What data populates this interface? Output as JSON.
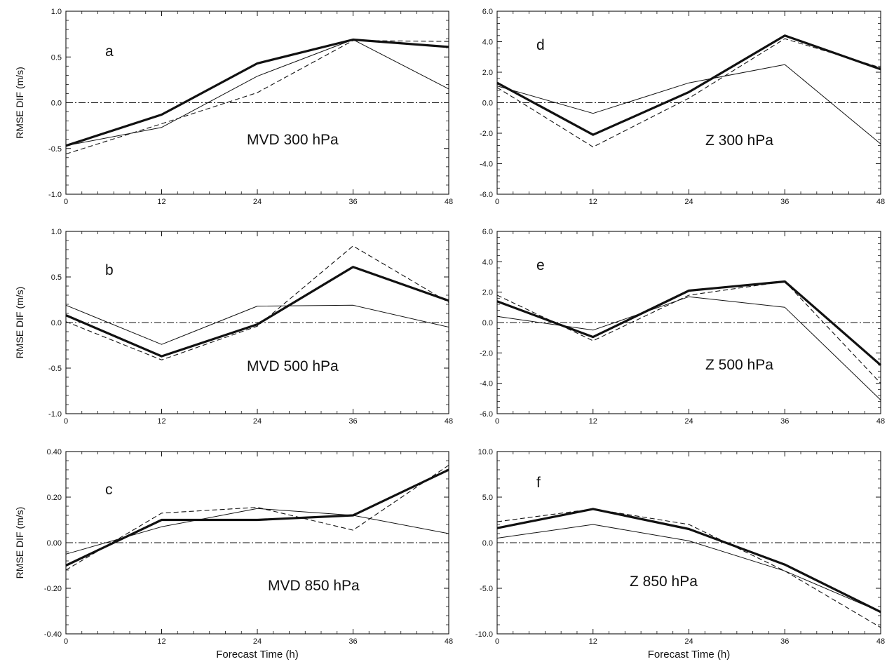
{
  "chart_data": [
    {
      "type": "line",
      "panel_label": "a",
      "annotation": "MVD 300 hPa",
      "ylabel": "RMSE DIF (m/s)",
      "xlabel": "",
      "ylim": [
        -1.0,
        1.0
      ],
      "yticks": [
        -1.0,
        -0.5,
        0.0,
        0.5,
        1.0
      ],
      "ytick_labels": [
        "-1.0",
        "-0.5",
        "0.0",
        "0.5",
        "1.0"
      ],
      "xlim": [
        0,
        48
      ],
      "xticks": [
        0,
        12,
        24,
        36,
        48
      ],
      "xtick_labels": [
        "0",
        "12",
        "24",
        "36",
        "48"
      ],
      "x": [
        0,
        12,
        24,
        36,
        48
      ],
      "grid": false,
      "legend": "none",
      "series": [
        {
          "style": "thick-solid",
          "values": [
            -0.47,
            -0.13,
            0.43,
            0.69,
            0.61
          ]
        },
        {
          "style": "thin-solid",
          "values": [
            -0.47,
            -0.27,
            0.29,
            0.69,
            0.15
          ]
        },
        {
          "style": "dashed",
          "values": [
            -0.56,
            -0.23,
            0.11,
            0.68,
            0.67
          ]
        },
        {
          "style": "dash-dot",
          "values": [
            0,
            0,
            0,
            0,
            0
          ]
        }
      ]
    },
    {
      "type": "line",
      "panel_label": "b",
      "annotation": "MVD 500 hPa",
      "ylabel": "RMSE DIF (m/s)",
      "xlabel": "",
      "ylim": [
        -1.0,
        1.0
      ],
      "yticks": [
        -1.0,
        -0.5,
        0.0,
        0.5,
        1.0
      ],
      "ytick_labels": [
        "-1.0",
        "-0.5",
        "0.0",
        "0.5",
        "1.0"
      ],
      "xlim": [
        0,
        48
      ],
      "xticks": [
        0,
        12,
        24,
        36,
        48
      ],
      "xtick_labels": [
        "0",
        "12",
        "24",
        "36",
        "48"
      ],
      "x": [
        0,
        12,
        24,
        36,
        48
      ],
      "grid": false,
      "legend": "none",
      "series": [
        {
          "style": "thick-solid",
          "values": [
            0.08,
            -0.37,
            -0.02,
            0.61,
            0.24
          ]
        },
        {
          "style": "thin-solid",
          "values": [
            0.19,
            -0.24,
            0.18,
            0.19,
            -0.05
          ]
        },
        {
          "style": "dashed",
          "values": [
            0.01,
            -0.41,
            -0.04,
            0.84,
            0.22
          ]
        },
        {
          "style": "dash-dot",
          "values": [
            0,
            0,
            0,
            0,
            0
          ]
        }
      ]
    },
    {
      "type": "line",
      "panel_label": "c",
      "annotation": "MVD 850 hPa",
      "ylabel": "RMSE DIF (m/s)",
      "xlabel": "Forecast Time (h)",
      "ylim": [
        -0.4,
        0.4
      ],
      "yticks": [
        -0.4,
        -0.2,
        0.0,
        0.2,
        0.4
      ],
      "ytick_labels": [
        "-0.40",
        "-0.20",
        "0.00",
        "0.20",
        "0.40"
      ],
      "xlim": [
        0,
        48
      ],
      "xticks": [
        0,
        12,
        24,
        36,
        48
      ],
      "xtick_labels": [
        "0",
        "12",
        "24",
        "36",
        "48"
      ],
      "x": [
        0,
        12,
        24,
        36,
        48
      ],
      "grid": false,
      "legend": "none",
      "series": [
        {
          "style": "thick-solid",
          "values": [
            -0.1,
            0.1,
            0.1,
            0.12,
            0.32
          ]
        },
        {
          "style": "thin-solid",
          "values": [
            -0.05,
            0.07,
            0.15,
            0.12,
            0.04
          ]
        },
        {
          "style": "dashed",
          "values": [
            -0.12,
            0.13,
            0.155,
            0.055,
            0.34
          ]
        },
        {
          "style": "dash-dot",
          "values": [
            0,
            0,
            0,
            0,
            0
          ]
        }
      ]
    },
    {
      "type": "line",
      "panel_label": "d",
      "annotation": "Z 300 hPa",
      "ylabel": "",
      "xlabel": "",
      "ylim": [
        -6.0,
        6.0
      ],
      "yticks": [
        -6,
        -4,
        -2,
        0,
        2,
        4,
        6
      ],
      "ytick_labels": [
        "-6.0",
        "-4.0",
        "-2.0",
        "0.0",
        "2.0",
        "4.0",
        "6.0"
      ],
      "xlim": [
        0,
        48
      ],
      "xticks": [
        0,
        12,
        24,
        36,
        48
      ],
      "xtick_labels": [
        "0",
        "12",
        "24",
        "36",
        "48"
      ],
      "x": [
        0,
        12,
        24,
        36,
        48
      ],
      "grid": false,
      "legend": "none",
      "series": [
        {
          "style": "thick-solid",
          "values": [
            1.3,
            -2.1,
            0.7,
            4.4,
            2.2
          ]
        },
        {
          "style": "thin-solid",
          "values": [
            1.1,
            -0.7,
            1.3,
            2.5,
            -2.7
          ]
        },
        {
          "style": "dashed",
          "values": [
            1.0,
            -2.9,
            0.3,
            4.2,
            2.3
          ]
        },
        {
          "style": "dash-dot",
          "values": [
            0,
            0,
            0,
            0,
            0
          ]
        }
      ]
    },
    {
      "type": "line",
      "panel_label": "e",
      "annotation": "Z 500 hPa",
      "ylabel": "",
      "xlabel": "",
      "ylim": [
        -6.0,
        6.0
      ],
      "yticks": [
        -6,
        -4,
        -2,
        0,
        2,
        4,
        6
      ],
      "ytick_labels": [
        "-6.0",
        "-4.0",
        "-2.0",
        "0.0",
        "2.0",
        "4.0",
        "6.0"
      ],
      "xlim": [
        0,
        48
      ],
      "xticks": [
        0,
        12,
        24,
        36,
        48
      ],
      "xtick_labels": [
        "0",
        "12",
        "24",
        "36",
        "48"
      ],
      "x": [
        0,
        12,
        24,
        36,
        48
      ],
      "grid": false,
      "legend": "none",
      "series": [
        {
          "style": "thick-solid",
          "values": [
            1.4,
            -0.95,
            2.1,
            2.7,
            -2.8
          ]
        },
        {
          "style": "thin-solid",
          "values": [
            0.4,
            -0.5,
            1.7,
            1.0,
            -5.1
          ]
        },
        {
          "style": "dashed",
          "values": [
            1.8,
            -1.2,
            1.8,
            2.7,
            -4.0
          ]
        },
        {
          "style": "dash-dot",
          "values": [
            0,
            0,
            0,
            0,
            0
          ]
        }
      ]
    },
    {
      "type": "line",
      "panel_label": "f",
      "annotation": "Z 850 hPa",
      "ylabel": "",
      "xlabel": "Forecast Time (h)",
      "ylim": [
        -10.0,
        10.0
      ],
      "yticks": [
        -10,
        -5,
        0,
        5,
        10
      ],
      "ytick_labels": [
        "-10.0",
        "-5.0",
        "0.0",
        "5.0",
        "10.0"
      ],
      "xlim": [
        0,
        48
      ],
      "xticks": [
        0,
        12,
        24,
        36,
        48
      ],
      "xtick_labels": [
        "0",
        "12",
        "24",
        "36",
        "48"
      ],
      "x": [
        0,
        12,
        24,
        36,
        48
      ],
      "grid": false,
      "legend": "none",
      "series": [
        {
          "style": "thick-solid",
          "values": [
            1.6,
            3.7,
            1.5,
            -2.4,
            -7.6
          ]
        },
        {
          "style": "thin-solid",
          "values": [
            0.5,
            2.0,
            0.2,
            -3.1,
            -7.6
          ]
        },
        {
          "style": "dashed",
          "values": [
            2.3,
            3.7,
            2.0,
            -3.1,
            -9.3
          ]
        },
        {
          "style": "dash-dot",
          "values": [
            0,
            0,
            0,
            0,
            0
          ]
        }
      ]
    }
  ]
}
